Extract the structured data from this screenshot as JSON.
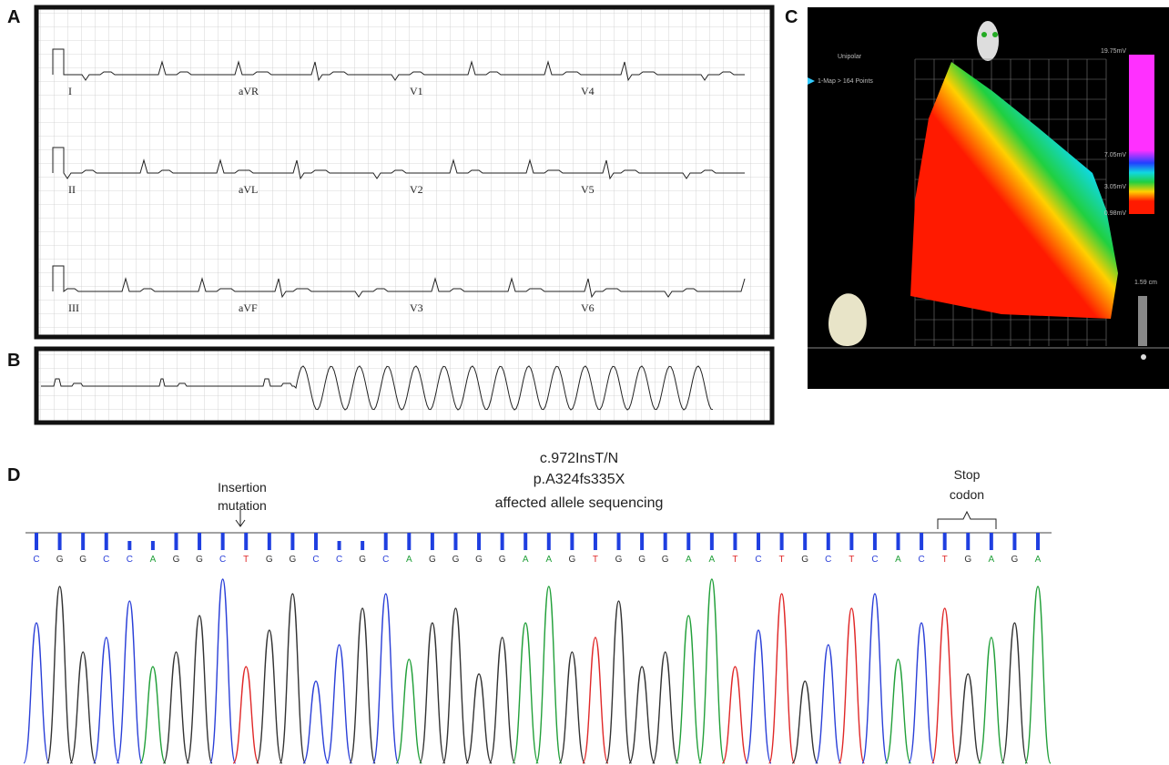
{
  "panels": {
    "A": {
      "label": "A",
      "leads": [
        "I",
        "aVR",
        "V1",
        "V4",
        "II",
        "aVL",
        "V2",
        "V5",
        "III",
        "aVF",
        "V3",
        "V6"
      ]
    },
    "B": {
      "label": "B"
    },
    "C": {
      "label": "C",
      "mode": "Unipolar",
      "points": "1-Map > 164 Points",
      "scale_labels": [
        "19.75mV",
        "7.05mV",
        "3.05mV",
        "0.98mV"
      ],
      "size": "1.59 cm"
    },
    "D": {
      "label": "D",
      "title_lines": [
        "c.972InsT/N",
        "p.A324fs335X",
        "affected allele sequencing"
      ],
      "insertion": [
        "Insertion",
        "mutation"
      ],
      "stop": [
        "Stop",
        "codon"
      ],
      "bases": [
        "C",
        "G",
        "G",
        "C",
        "C",
        "A",
        "G",
        "G",
        "C",
        "T",
        "G",
        "G",
        "C",
        "C",
        "G",
        "C",
        "A",
        "G",
        "G",
        "G",
        "G",
        "A",
        "A",
        "G",
        "T",
        "G",
        "G",
        "G",
        "A",
        "A",
        "T",
        "C",
        "T",
        "G",
        "C",
        "T",
        "C",
        "A",
        "C",
        "T",
        "G",
        "A",
        "G",
        "A"
      ],
      "base_colors": {
        "C": "#2a3fd8",
        "G": "#333333",
        "A": "#22a03a",
        "T": "#e02828"
      }
    }
  }
}
